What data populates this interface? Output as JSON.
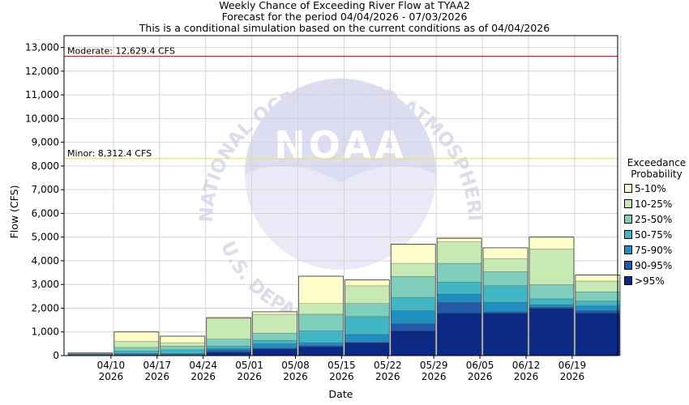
{
  "title_lines": [
    "Weekly Chance of Exceeding River Flow at TYAA2",
    "Forecast for the period 04/04/2026 - 07/03/2026",
    "This is a conditional simulation based on the current conditions as of 04/04/2026"
  ],
  "watermark": {
    "logo_text": "NOAA",
    "arc_text": "NATIONAL OCEANIC AND ATMOSPHERIC ADMINISTRATION",
    "lower_text": "U.S. DEPARTMENT OF COMMERCE"
  },
  "colors": {
    "moderate_line": "#d2232a",
    "minor_line": "#f0e65a",
    "bands": [
      "#0c2a85",
      "#2459a8",
      "#1f8ec0",
      "#41b6c4",
      "#7fcdbb",
      "#c7e9b4",
      "#ffffcc"
    ]
  },
  "chart_data": {
    "type": "bar",
    "stacked": true,
    "xlabel": "Date",
    "ylabel": "Flow (CFS)",
    "ylim": [
      0,
      13500
    ],
    "yticks": [
      0,
      1000,
      2000,
      3000,
      4000,
      5000,
      6000,
      7000,
      8000,
      9000,
      10000,
      11000,
      12000,
      13000
    ],
    "ytick_labels": [
      "0",
      "1,000",
      "2,000",
      "3,000",
      "4,000",
      "5,000",
      "6,000",
      "7,000",
      "8,000",
      "9,000",
      "10,000",
      "11,000",
      "12,000",
      "13,000"
    ],
    "xtick_labels": [
      {
        "top": "04/10",
        "bottom": "2026"
      },
      {
        "top": "04/17",
        "bottom": "2026"
      },
      {
        "top": "04/24",
        "bottom": "2026"
      },
      {
        "top": "05/01",
        "bottom": "2026"
      },
      {
        "top": "05/08",
        "bottom": "2026"
      },
      {
        "top": "05/15",
        "bottom": "2026"
      },
      {
        "top": "05/22",
        "bottom": "2026"
      },
      {
        "top": "05/29",
        "bottom": "2026"
      },
      {
        "top": "06/05",
        "bottom": "2026"
      },
      {
        "top": "06/12",
        "bottom": "2026"
      },
      {
        "top": "06/19",
        "bottom": "2026"
      }
    ],
    "thresholds": [
      {
        "label": "Moderate: 12,629.4 CFS",
        "value": 12629.4
      },
      {
        "label": "Minor: 8,312.4 CFS",
        "value": 8312.4
      }
    ],
    "legend_title": [
      "Exceedance",
      "Probability"
    ],
    "series": [
      {
        "name": ">95%"
      },
      {
        "name": "90-95%"
      },
      {
        "name": "75-90%"
      },
      {
        "name": "50-75%"
      },
      {
        "name": "25-50%"
      },
      {
        "name": "10-25%"
      },
      {
        "name": "5-10%"
      }
    ],
    "bars": [
      [
        0,
        50,
        70,
        80,
        90,
        100,
        110
      ],
      [
        0,
        50,
        100,
        200,
        350,
        600,
        1000
      ],
      [
        0,
        50,
        100,
        250,
        400,
        550,
        820
      ],
      [
        150,
        230,
        300,
        400,
        700,
        1550,
        1600
      ],
      [
        290,
        320,
        500,
        650,
        950,
        1750,
        1850
      ],
      [
        380,
        430,
        550,
        1050,
        1750,
        2200,
        3350
      ],
      [
        550,
        570,
        900,
        1650,
        2200,
        2950,
        3200
      ],
      [
        1050,
        1350,
        1900,
        2450,
        3350,
        3900,
        4700
      ],
      [
        1800,
        2250,
        2600,
        3100,
        3900,
        4800,
        4950
      ],
      [
        1800,
        1850,
        2250,
        2950,
        3550,
        4100,
        4550
      ],
      [
        2000,
        2050,
        2150,
        2400,
        3000,
        4500,
        5000
      ],
      [
        1800,
        1900,
        2100,
        2300,
        2700,
        3150,
        3400
      ]
    ]
  }
}
